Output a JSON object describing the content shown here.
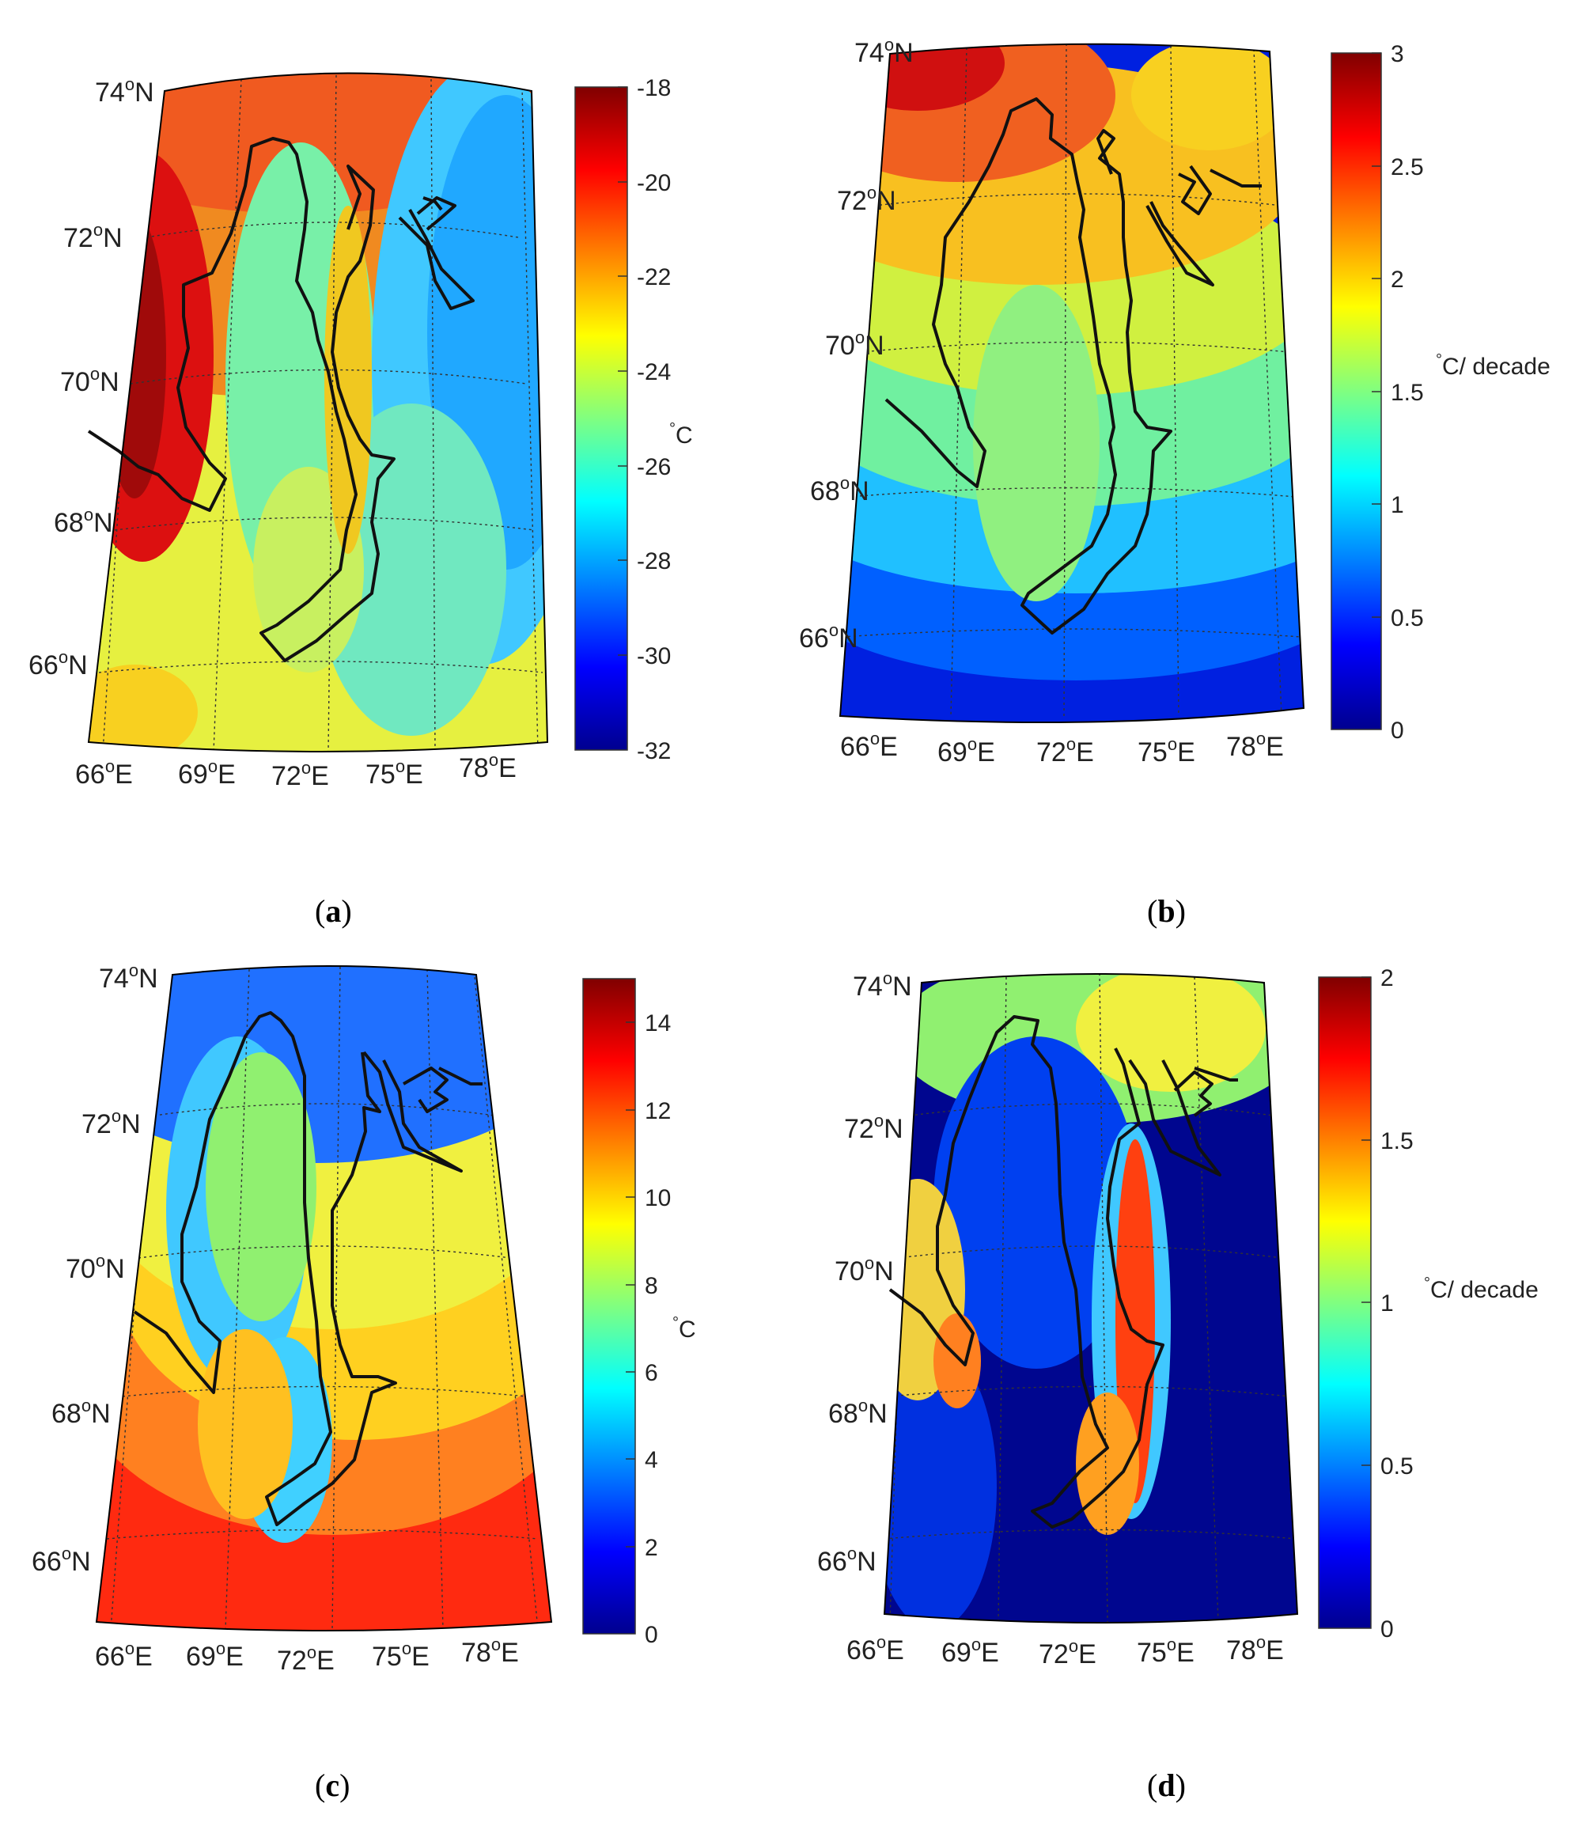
{
  "panels": [
    {
      "id": "a",
      "caption_letter": "a",
      "lat_labels": [
        "74",
        "72",
        "70",
        "68",
        "66"
      ],
      "lon_labels": [
        "66",
        "69",
        "72",
        "75",
        "78"
      ],
      "colorbar": {
        "ticks": [
          "-18",
          "-20",
          "-22",
          "-24",
          "-26",
          "-28",
          "-30",
          "-32"
        ],
        "min": -32,
        "max": -18,
        "unit_deg": "°",
        "unit_text": "C"
      }
    },
    {
      "id": "b",
      "caption_letter": "b",
      "lat_labels": [
        "74",
        "72",
        "70",
        "68",
        "66"
      ],
      "lon_labels": [
        "66",
        "69",
        "72",
        "75",
        "78"
      ],
      "colorbar": {
        "ticks": [
          "3",
          "2.5",
          "2",
          "1.5",
          "1",
          "0.5",
          "0"
        ],
        "min": 0,
        "max": 3,
        "unit_deg": "°",
        "unit_text": "C/ decade"
      }
    },
    {
      "id": "c",
      "caption_letter": "c",
      "lat_labels": [
        "74",
        "72",
        "70",
        "68",
        "66"
      ],
      "lon_labels": [
        "66",
        "69",
        "72",
        "75",
        "78"
      ],
      "colorbar": {
        "ticks": [
          "14",
          "12",
          "10",
          "8",
          "6",
          "4",
          "2",
          "0"
        ],
        "min": 0,
        "max": 15,
        "unit_deg": "°",
        "unit_text": "C"
      }
    },
    {
      "id": "d",
      "caption_letter": "d",
      "lat_labels": [
        "74",
        "72",
        "70",
        "68",
        "66"
      ],
      "lon_labels": [
        "66",
        "69",
        "72",
        "75",
        "78"
      ],
      "colorbar": {
        "ticks": [
          "2",
          "1.5",
          "1",
          "0.5",
          "0"
        ],
        "min": 0,
        "max": 2,
        "unit_deg": "°",
        "unit_text": "C/ decade"
      }
    }
  ],
  "symbols": {
    "degree_o": "o",
    "north": "N",
    "east": "E",
    "paren_open": "(",
    "paren_close": ")"
  },
  "colors": {
    "jet": [
      "#00008f",
      "#0000ff",
      "#0080ff",
      "#00ffff",
      "#80ff80",
      "#ffff00",
      "#ff8000",
      "#ff0000",
      "#800000"
    ],
    "coastline": "#111111",
    "graticule": "#333333"
  }
}
